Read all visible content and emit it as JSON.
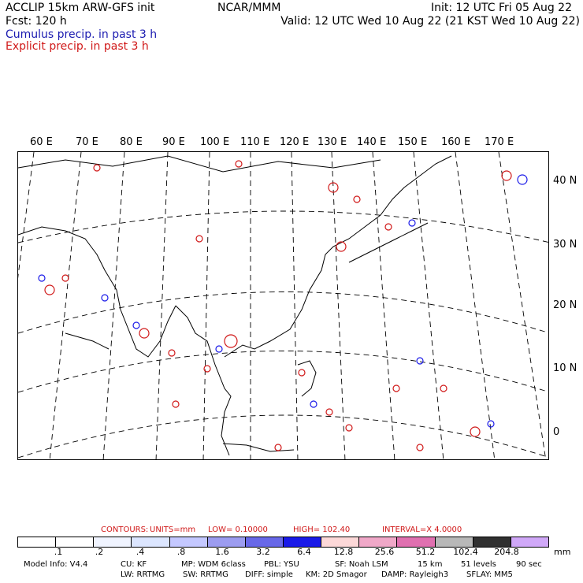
{
  "header": {
    "model": "ACCLIP 15km ARW-GFS init",
    "fcst": "Fcst:  120 h",
    "center": "NCAR/MMM",
    "init": "Init: 12 UTC Fri 05 Aug 22",
    "valid": "Valid: 12 UTC Wed 10 Aug 22 (21 KST Wed 10 Aug 22)",
    "cumulus": "Cumulus precip. in past 3 h",
    "explicit": "Explicit precip. in past 3 h"
  },
  "colors": {
    "cumulus": "#1a1ab0",
    "explicit": "#d01818"
  },
  "lon_labels": [
    "60 E",
    "70 E",
    "80 E",
    "90 E",
    "100 E",
    "110 E",
    "120 E",
    "130 E",
    "140 E",
    "150 E",
    "160 E",
    "170 E"
  ],
  "lat_labels": [
    "40 N",
    "30 N",
    "20 N",
    "10 N",
    "0"
  ],
  "contours": {
    "title": "CONTOURS:",
    "units": "UNITS=mm",
    "low": "LOW= 0.10000",
    "high": "HIGH=  102.40",
    "interval": "INTERVAL=X  4.0000"
  },
  "colorbar": {
    "labels": [
      ".1",
      ".2",
      ".4",
      ".8",
      "1.6",
      "3.2",
      "6.4",
      "12.8",
      "25.6",
      "51.2",
      "102.4",
      "204.8"
    ],
    "units": "mm",
    "colors": [
      "#ffffff",
      "#ffffff",
      "#f0f4ff",
      "#dce6ff",
      "#c4c8ff",
      "#9c9cf0",
      "#6868e8",
      "#1a1ae8",
      "#fcd8d8",
      "#f0a8c8",
      "#e070b0",
      "#b8b8b8",
      "#303030",
      "#d0a8f8"
    ]
  },
  "footer": {
    "line1": [
      "Model Info: V4.4",
      "CU: KF",
      "MP: WDM 6class",
      "PBL: YSU",
      "SF: Noah LSM",
      "15 km",
      "51 levels",
      "90 sec"
    ],
    "line2": [
      "LW: RRTMG",
      "SW: RRTMG",
      "DIFF: simple",
      "KM: 2D Smagor",
      "DAMP: Rayleigh3",
      "SFLAY: MM5"
    ]
  }
}
